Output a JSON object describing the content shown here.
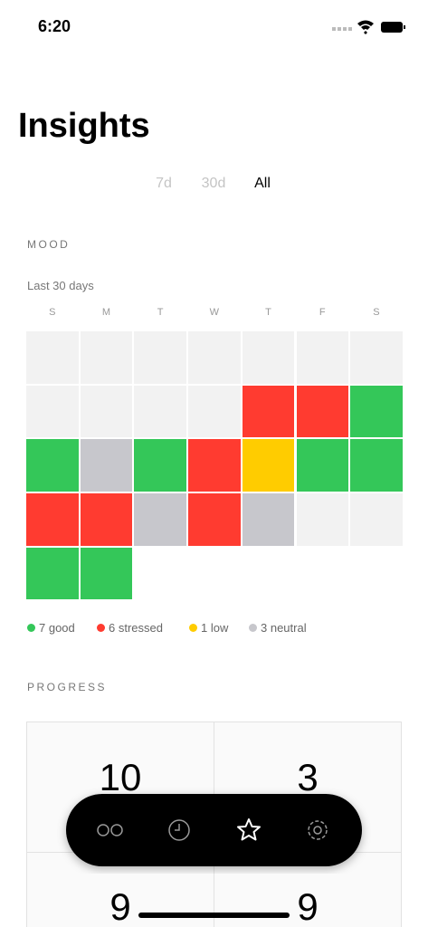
{
  "status_bar": {
    "time": "6:20"
  },
  "header": {
    "title": "Insights"
  },
  "range_tabs": {
    "options": [
      "7d",
      "30d",
      "All"
    ],
    "selected": 2
  },
  "mood": {
    "heading": "MOOD",
    "subtitle": "Last 30 days",
    "weekdays": [
      "S",
      "M",
      "T",
      "W",
      "T",
      "F",
      "S"
    ],
    "empty_color": "#f2f2f2",
    "cells": [
      [
        null,
        null,
        null,
        null,
        null,
        null,
        null
      ],
      [
        null,
        null,
        null,
        null,
        "#ff3b30",
        "#ff3b30",
        "#34c759"
      ],
      [
        "#34c759",
        "#c7c7cc",
        "#34c759",
        "#ff3b30",
        "#ffcc00",
        "#34c759",
        "#34c759"
      ],
      [
        "#ff3b30",
        "#ff3b30",
        "#c7c7cc",
        "#ff3b30",
        "#c7c7cc",
        null,
        null
      ],
      [
        "#34c759",
        "#34c759"
      ]
    ],
    "legend": [
      {
        "label": "7 good",
        "color": "#34c759"
      },
      {
        "label": "6 stressed",
        "color": "#ff3b30"
      },
      {
        "label": "1 low",
        "color": "#ffcc00"
      },
      {
        "label": "3 neutral",
        "color": "#c7c7cc"
      }
    ]
  },
  "progress": {
    "heading": "PROGRESS",
    "tiles": [
      10,
      3,
      9,
      9
    ]
  }
}
